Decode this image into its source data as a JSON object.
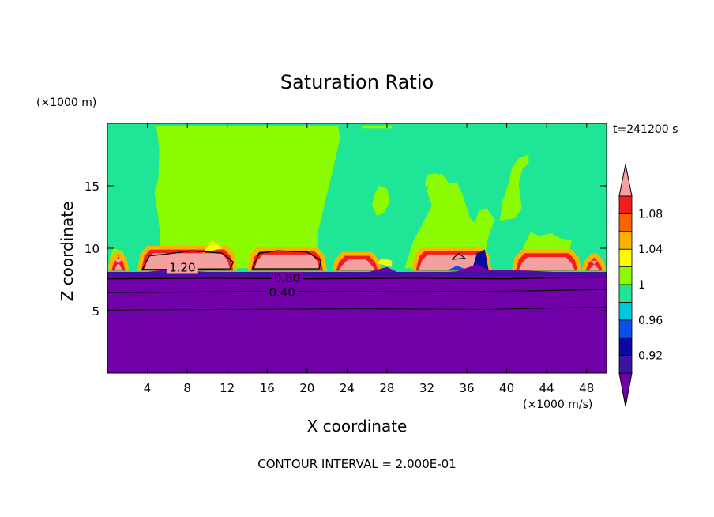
{
  "chart_data": {
    "type": "contour",
    "title": "Saturation Ratio",
    "time_label": "t=241200 s",
    "xlabel": "X coordinate",
    "ylabel": "Z coordinate",
    "x_units": "(×1000 m/s)",
    "y_units": "(×1000 m)",
    "footer": "CONTOUR INTERVAL = 2.000E-01",
    "xlim": [
      0,
      50
    ],
    "ylim": [
      0,
      20
    ],
    "x_ticks": [
      4,
      8,
      12,
      16,
      20,
      24,
      28,
      32,
      36,
      40,
      44,
      48
    ],
    "y_ticks": [
      5,
      10,
      15
    ],
    "colorbar": {
      "levels": [
        0.92,
        0.94,
        0.96,
        0.98,
        1.0,
        1.02,
        1.04,
        1.06,
        1.08,
        1.1
      ],
      "tick_labels": [
        "0.92",
        "0.96",
        "1",
        "1.04",
        "1.08"
      ],
      "colors": [
        "#7000a8",
        "#3c14a0",
        "#0a0aa0",
        "#0a50e6",
        "#00c8dc",
        "#1ee696",
        "#8cfa00",
        "#fafa00",
        "#fab400",
        "#fa6400",
        "#f01e1e",
        "#f5a0a0"
      ]
    },
    "contour_labels": [
      {
        "label": "1.20",
        "x": 7.5,
        "z": 8.45
      },
      {
        "label": "0.80",
        "x": 18.0,
        "z": 7.6
      },
      {
        "label": "0.40",
        "x": 17.5,
        "z": 6.45
      }
    ],
    "regions": {
      "lower_layer_top_z": 8.0,
      "saturated_green_top_z": 19.8,
      "lime_plume_x": [
        5.0,
        23.0
      ],
      "supersaturated_cells_x": [
        [
          3.5,
          12.5
        ],
        [
          14.5,
          21.5
        ]
      ]
    }
  }
}
